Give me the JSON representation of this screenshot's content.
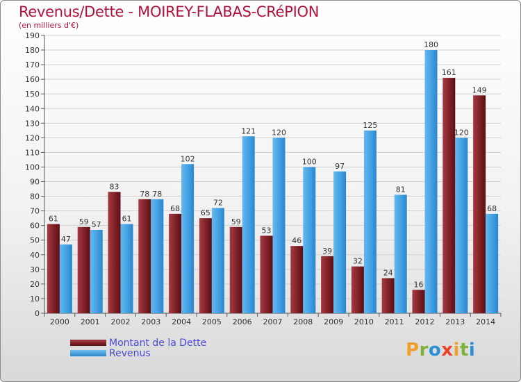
{
  "title": "Revenus/Dette - MOIREY-FLABAS-CRéPION",
  "subtitle": "(en milliers d'€)",
  "chart_data": {
    "type": "bar",
    "categories": [
      "2000",
      "2001",
      "2002",
      "2003",
      "2004",
      "2005",
      "2006",
      "2007",
      "2008",
      "2009",
      "2010",
      "2011",
      "2012",
      "2013",
      "2014"
    ],
    "series": [
      {
        "name": "Montant de la Dette",
        "color": "#7a1f24",
        "values": [
          61,
          59,
          83,
          78,
          68,
          65,
          59,
          53,
          46,
          39,
          32,
          24,
          16,
          161,
          149
        ]
      },
      {
        "name": "Revenus",
        "color": "#3f9ee0",
        "values": [
          47,
          57,
          61,
          78,
          102,
          72,
          121,
          120,
          100,
          97,
          125,
          81,
          180,
          120,
          68
        ]
      }
    ],
    "ylim": [
      0,
      190
    ],
    "yticks": [
      0,
      10,
      20,
      30,
      40,
      50,
      60,
      70,
      80,
      90,
      100,
      110,
      120,
      130,
      140,
      150,
      160,
      170,
      180,
      190
    ],
    "grid": true,
    "legend_position": "bottom-left"
  },
  "legend": {
    "debt_label": "Montant de la Dette",
    "revenue_label": "Revenus"
  },
  "logo": {
    "text": "Proxiti",
    "letters": [
      {
        "ch": "P",
        "color": "#f0a02a"
      },
      {
        "ch": "r",
        "color": "#7fb23a"
      },
      {
        "ch": "o",
        "color": "#2a8fd6"
      },
      {
        "ch": "x",
        "color": "#e8442a"
      },
      {
        "ch": "i",
        "color": "#f0a02a"
      },
      {
        "ch": "t",
        "color": "#7fb23a"
      },
      {
        "ch": "i",
        "color": "#2a8fd6"
      }
    ]
  }
}
